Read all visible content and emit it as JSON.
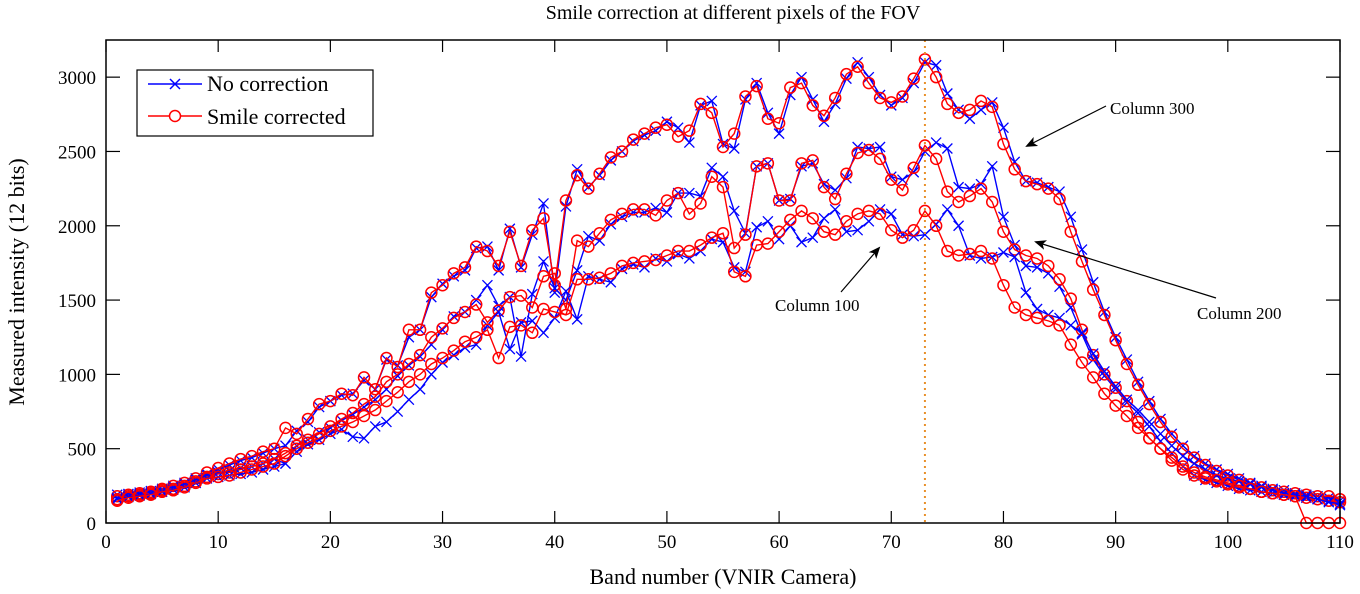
{
  "chart_data": {
    "type": "line",
    "title": "Smile correction at different pixels of the FOV",
    "xlabel": "Band number (VNIR Camera)",
    "ylabel": "Measured intensity (12 bits)",
    "xlim": [
      0,
      110
    ],
    "ylim": [
      0,
      3250
    ],
    "xticks": [
      0,
      10,
      20,
      30,
      40,
      50,
      60,
      70,
      80,
      90,
      100,
      110
    ],
    "yticks": [
      0,
      500,
      1000,
      1500,
      2000,
      2500,
      3000
    ],
    "grid": false,
    "legend": {
      "placement": "top-left",
      "entries": [
        "No correction",
        "Smile corrected"
      ]
    },
    "vertical_marker": {
      "x": 73,
      "color": "#e8902a",
      "style": "dotted"
    },
    "colors": {
      "no_correction": "#0000ff",
      "smile_corrected": "#ff0000"
    },
    "annotations": [
      {
        "text": "Column 300",
        "series": "Column 300"
      },
      {
        "text": "Column 200",
        "series": "Column 200"
      },
      {
        "text": "Column 100",
        "series": "Column 100"
      }
    ],
    "x_start": 1,
    "series": [
      {
        "name": "Column 300 - No correction",
        "kind": "no_correction",
        "values": [
          190,
          195,
          205,
          215,
          230,
          250,
          270,
          300,
          330,
          360,
          390,
          420,
          440,
          470,
          500,
          520,
          620,
          680,
          780,
          820,
          860,
          870,
          960,
          900,
          1100,
          1060,
          1250,
          1300,
          1520,
          1610,
          1660,
          1700,
          1850,
          1860,
          1700,
          1980,
          1720,
          1940,
          2150,
          1550,
          2130,
          2380,
          2260,
          2340,
          2440,
          2500,
          2570,
          2610,
          2640,
          2700,
          2660,
          2560,
          2810,
          2840,
          2550,
          2520,
          2850,
          2960,
          2760,
          2620,
          2880,
          3000,
          2850,
          2700,
          2820,
          2990,
          3100,
          3000,
          2880,
          2810,
          2860,
          2960,
          3100,
          3080,
          2890,
          2780,
          2720,
          2780,
          2830,
          2660,
          2430,
          2300,
          2290,
          2260,
          2230,
          2060,
          1840,
          1620,
          1420,
          1250,
          1100,
          950,
          820,
          700,
          600,
          520,
          450,
          400,
          360,
          330,
          300,
          270,
          250,
          230,
          220,
          200,
          190,
          180,
          170,
          150
        ]
      },
      {
        "name": "Column 300 - Smile corrected",
        "kind": "smile_corrected",
        "values": [
          180,
          190,
          200,
          210,
          230,
          250,
          270,
          300,
          340,
          370,
          400,
          430,
          450,
          480,
          500,
          640,
          600,
          700,
          800,
          820,
          870,
          860,
          980,
          900,
          1110,
          1050,
          1300,
          1300,
          1550,
          1600,
          1680,
          1720,
          1860,
          1830,
          1730,
          1960,
          1730,
          1970,
          2050,
          1600,
          2170,
          2340,
          2250,
          2350,
          2460,
          2500,
          2580,
          2620,
          2660,
          2680,
          2600,
          2640,
          2820,
          2760,
          2530,
          2620,
          2870,
          2940,
          2720,
          2690,
          2930,
          2960,
          2810,
          2740,
          2860,
          3020,
          3070,
          2960,
          2860,
          2830,
          2870,
          2990,
          3120,
          3000,
          2820,
          2760,
          2780,
          2840,
          2800,
          2550,
          2380,
          2300,
          2280,
          2250,
          2180,
          1960,
          1760,
          1570,
          1400,
          1230,
          1070,
          930,
          800,
          680,
          580,
          500,
          440,
          390,
          350,
          320,
          290,
          260,
          240,
          220,
          210,
          200,
          190,
          180,
          180,
          160
        ]
      },
      {
        "name": "Column 200 - No correction",
        "kind": "no_correction",
        "values": [
          170,
          185,
          195,
          205,
          220,
          240,
          260,
          290,
          320,
          340,
          350,
          370,
          380,
          400,
          430,
          400,
          520,
          560,
          610,
          640,
          690,
          730,
          780,
          830,
          900,
          990,
          1060,
          1120,
          1200,
          1300,
          1390,
          1420,
          1500,
          1600,
          1460,
          1520,
          1120,
          1540,
          1760,
          1580,
          1500,
          1700,
          1930,
          1900,
          2010,
          2060,
          2090,
          2090,
          2120,
          2090,
          2220,
          2220,
          2200,
          2390,
          2330,
          2100,
          1950,
          2400,
          2420,
          2170,
          2180,
          2400,
          2420,
          2280,
          2240,
          2320,
          2530,
          2520,
          2530,
          2330,
          2310,
          2360,
          2500,
          2560,
          2520,
          2260,
          2250,
          2280,
          2400,
          2060,
          1870,
          1730,
          1720,
          1680,
          1590,
          1450,
          1270,
          1100,
          990,
          900,
          810,
          740,
          650,
          550,
          470,
          380,
          320,
          290,
          270,
          250,
          230,
          220,
          210,
          200,
          190,
          180,
          170,
          160,
          150,
          120
        ]
      },
      {
        "name": "Column 200 - Smile corrected",
        "kind": "smile_corrected",
        "values": [
          160,
          180,
          190,
          200,
          220,
          230,
          250,
          280,
          310,
          330,
          340,
          360,
          380,
          400,
          430,
          470,
          520,
          560,
          600,
          650,
          700,
          740,
          800,
          850,
          950,
          1000,
          1070,
          1130,
          1250,
          1310,
          1380,
          1420,
          1470,
          1350,
          1430,
          1520,
          1530,
          1450,
          1660,
          1680,
          1440,
          1900,
          1860,
          1950,
          2040,
          2080,
          2110,
          2110,
          2070,
          2170,
          2220,
          2080,
          2150,
          2330,
          2260,
          1850,
          1940,
          2400,
          2420,
          2170,
          2170,
          2420,
          2440,
          2260,
          2180,
          2350,
          2490,
          2510,
          2450,
          2310,
          2240,
          2390,
          2540,
          2450,
          2230,
          2160,
          2200,
          2250,
          2160,
          1960,
          1840,
          1800,
          1780,
          1730,
          1640,
          1510,
          1300,
          1130,
          1000,
          910,
          820,
          680,
          570,
          500,
          420,
          360,
          320,
          300,
          280,
          260,
          240,
          230,
          210,
          200,
          190,
          180,
          170,
          160,
          150,
          140
        ]
      },
      {
        "name": "Column 100 - No correction",
        "kind": "no_correction",
        "values": [
          160,
          175,
          185,
          195,
          210,
          225,
          240,
          270,
          300,
          310,
          320,
          330,
          340,
          360,
          380,
          400,
          480,
          530,
          560,
          600,
          630,
          580,
          570,
          650,
          680,
          750,
          830,
          900,
          1000,
          1080,
          1130,
          1180,
          1200,
          1330,
          1420,
          1170,
          1350,
          1360,
          1280,
          1380,
          1560,
          1370,
          1660,
          1640,
          1620,
          1710,
          1740,
          1720,
          1780,
          1760,
          1810,
          1780,
          1830,
          1910,
          1890,
          1720,
          1690,
          1990,
          2030,
          1910,
          2000,
          1890,
          1920,
          2050,
          2110,
          1960,
          1970,
          2030,
          2110,
          2080,
          1940,
          1930,
          1940,
          2010,
          2110,
          2000,
          1800,
          1780,
          1790,
          1820,
          1790,
          1550,
          1440,
          1400,
          1380,
          1330,
          1280,
          1140,
          1020,
          920,
          830,
          760,
          680,
          600,
          520,
          450,
          400,
          360,
          320,
          300,
          280,
          260,
          240,
          220,
          200,
          190,
          180,
          160,
          140,
          130
        ]
      },
      {
        "name": "Column 100 - Smile corrected",
        "kind": "smile_corrected",
        "values": [
          150,
          170,
          180,
          190,
          210,
          220,
          240,
          270,
          300,
          310,
          320,
          340,
          360,
          380,
          400,
          450,
          500,
          540,
          570,
          620,
          650,
          680,
          720,
          760,
          820,
          880,
          950,
          1000,
          1070,
          1110,
          1160,
          1220,
          1250,
          1300,
          1110,
          1320,
          1330,
          1280,
          1440,
          1420,
          1400,
          1640,
          1640,
          1650,
          1680,
          1730,
          1750,
          1760,
          1770,
          1800,
          1830,
          1830,
          1870,
          1920,
          1950,
          1690,
          1660,
          1870,
          1880,
          1960,
          2040,
          2100,
          2050,
          1960,
          1940,
          2030,
          2080,
          2100,
          2080,
          1970,
          1920,
          1970,
          2100,
          2000,
          1830,
          1800,
          1810,
          1830,
          1780,
          1600,
          1450,
          1400,
          1380,
          1360,
          1330,
          1200,
          1080,
          980,
          870,
          790,
          720,
          640,
          570,
          500,
          440,
          380,
          340,
          310,
          290,
          270,
          250,
          230,
          210,
          200,
          190,
          180,
          0,
          0,
          0,
          0
        ]
      }
    ]
  }
}
